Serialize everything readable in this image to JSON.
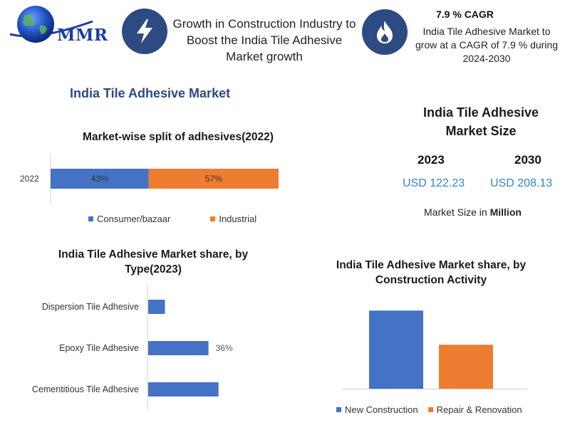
{
  "header": {
    "logo_text": "MMR",
    "headline": "Growth in Construction Industry to Boost the India Tile Adhesive Market growth",
    "cagr_title": "7.9 % CAGR",
    "cagr_text": "India Tile Adhesive Market to grow at a CAGR of 7.9 % during 2024-2030",
    "icons": [
      "globe-logo-icon",
      "lightning-bolt-icon",
      "flame-icon"
    ]
  },
  "market_title": "India Tile Adhesive Market",
  "market_size": {
    "title": "India Tile Adhesive Market Size",
    "years": [
      {
        "year": "2023",
        "value": "USD 122.23"
      },
      {
        "year": "2030",
        "value": "USD 208.13"
      }
    ],
    "note_prefix": "Market Size in",
    "note_unit": "Million"
  },
  "colors": {
    "blue": "#4472c4",
    "orange": "#ed7d31",
    "navy": "#2d4a83",
    "value_blue": "#2e86c1"
  },
  "chart_data": [
    {
      "id": "split",
      "type": "bar",
      "orientation": "horizontal",
      "stacked": true,
      "title": "Market-wise split of adhesives(2022)",
      "categories": [
        "2022"
      ],
      "series": [
        {
          "name": "Consumer/bazaar",
          "values": [
            43
          ],
          "label": "43%"
        },
        {
          "name": "Industrial",
          "values": [
            57
          ],
          "label": "57%"
        }
      ],
      "xlim": [
        0,
        100
      ],
      "legend": "bottom"
    },
    {
      "id": "type",
      "type": "bar",
      "orientation": "horizontal",
      "title": "India Tile Adhesive Market share, by Type(2023)",
      "categories": [
        "Dispersion Tile Adhesive",
        "Epoxy Tile Adhesive",
        "Cementitious Tile Adhesive"
      ],
      "values": [
        10,
        36,
        42
      ],
      "data_labels": [
        "",
        "36%",
        ""
      ],
      "xlim": [
        0,
        100
      ]
    },
    {
      "id": "activity",
      "type": "bar",
      "title": "India Tile Adhesive Market share, by Construction Activity",
      "categories": [
        ""
      ],
      "series": [
        {
          "name": "New Construction",
          "values": [
            64
          ]
        },
        {
          "name": "Repair & Renovation",
          "values": [
            36
          ]
        }
      ],
      "ylim": [
        0,
        70
      ],
      "legend": "bottom"
    }
  ]
}
